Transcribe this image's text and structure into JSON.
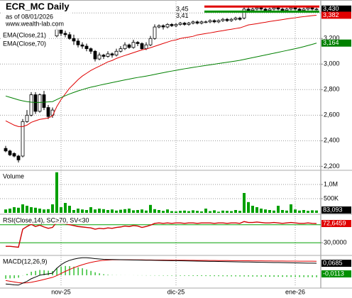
{
  "chart_data": [
    {
      "type": "candlestick",
      "title": "ECR_MC Daily",
      "subtitle": "as of 08/01/2026",
      "source": "www.wealth-lab.com",
      "categories": [
        null,
        null,
        null,
        null,
        null,
        null,
        null,
        null,
        null,
        null,
        null,
        null,
        null,
        "nov-25",
        null,
        null,
        null,
        null,
        null,
        null,
        null,
        null,
        null,
        null,
        null,
        null,
        null,
        null,
        null,
        null,
        null,
        null,
        null,
        null,
        null,
        null,
        null,
        null,
        null,
        null,
        "dic-25",
        null,
        null,
        null,
        null,
        null,
        null,
        null,
        null,
        null,
        null,
        null,
        null,
        null,
        null,
        null,
        null,
        null,
        null,
        null,
        null,
        null,
        null,
        null,
        null,
        null,
        null,
        null,
        "ene-26",
        null,
        null,
        null,
        null,
        null
      ],
      "open": [
        2.34,
        2.32,
        2.3,
        2.28,
        2.28,
        2.55,
        2.6,
        2.76,
        2.63,
        2.76,
        2.66,
        2.6,
        3.22,
        3.27,
        3.24,
        3.23,
        3.2,
        3.18,
        3.15,
        3.14,
        3.12,
        3.1,
        3.04,
        3.07,
        3.06,
        3.08,
        3.07,
        3.1,
        3.12,
        3.15,
        3.13,
        3.17,
        3.16,
        3.12,
        3.15,
        3.2,
        3.29,
        3.3,
        3.29,
        3.31,
        3.3,
        3.31,
        3.32,
        3.31,
        3.32,
        3.33,
        3.32,
        3.33,
        3.33,
        3.34,
        3.33,
        3.34,
        3.35,
        3.34,
        3.35,
        3.36,
        3.36,
        3.43,
        3.42,
        3.43,
        3.44,
        3.43,
        3.42,
        3.43,
        3.44,
        3.43,
        3.42,
        3.43,
        3.44,
        3.43,
        3.42,
        3.43,
        3.44,
        3.43
      ],
      "high": [
        2.36,
        2.33,
        2.31,
        2.29,
        2.57,
        2.64,
        2.78,
        2.78,
        2.77,
        2.79,
        2.68,
        2.66,
        3.32,
        3.29,
        3.26,
        3.25,
        3.23,
        3.2,
        3.17,
        3.16,
        3.13,
        3.11,
        3.09,
        3.08,
        3.1,
        3.09,
        3.12,
        3.14,
        3.17,
        3.16,
        3.19,
        3.18,
        3.17,
        3.17,
        3.22,
        3.31,
        3.31,
        3.31,
        3.32,
        3.32,
        3.32,
        3.33,
        3.33,
        3.33,
        3.34,
        3.34,
        3.34,
        3.34,
        3.35,
        3.35,
        3.35,
        3.36,
        3.36,
        3.36,
        3.37,
        3.37,
        3.45,
        3.45,
        3.44,
        3.45,
        3.45,
        3.44,
        3.44,
        3.45,
        3.45,
        3.44,
        3.44,
        3.45,
        3.45,
        3.44,
        3.44,
        3.45,
        3.45,
        3.44
      ],
      "low": [
        2.31,
        2.28,
        2.27,
        2.23,
        2.27,
        2.54,
        2.59,
        2.61,
        2.62,
        2.64,
        2.57,
        2.58,
        3.21,
        3.22,
        3.21,
        3.19,
        3.15,
        3.13,
        3.12,
        3.1,
        3.08,
        3.02,
        3.03,
        3.04,
        3.05,
        3.05,
        3.06,
        3.09,
        3.11,
        3.12,
        3.12,
        3.14,
        3.11,
        3.11,
        3.14,
        3.19,
        3.28,
        3.27,
        3.28,
        3.29,
        3.29,
        3.3,
        3.3,
        3.3,
        3.31,
        3.31,
        3.31,
        3.32,
        3.32,
        3.32,
        3.32,
        3.33,
        3.33,
        3.33,
        3.34,
        3.34,
        3.35,
        3.41,
        3.41,
        3.42,
        3.42,
        3.41,
        3.41,
        3.42,
        3.42,
        3.41,
        3.41,
        3.42,
        3.42,
        3.41,
        3.41,
        3.42,
        3.42,
        3.42
      ],
      "close": [
        2.32,
        2.29,
        2.28,
        2.25,
        2.55,
        2.6,
        2.76,
        2.63,
        2.76,
        2.66,
        2.59,
        2.64,
        3.27,
        3.24,
        3.23,
        3.2,
        3.18,
        3.15,
        3.14,
        3.12,
        3.1,
        3.04,
        3.07,
        3.06,
        3.08,
        3.07,
        3.1,
        3.12,
        3.15,
        3.13,
        3.17,
        3.16,
        3.12,
        3.15,
        3.2,
        3.29,
        3.3,
        3.29,
        3.31,
        3.3,
        3.31,
        3.32,
        3.31,
        3.32,
        3.33,
        3.32,
        3.33,
        3.33,
        3.34,
        3.33,
        3.34,
        3.35,
        3.34,
        3.35,
        3.36,
        3.35,
        3.43,
        3.42,
        3.43,
        3.44,
        3.43,
        3.42,
        3.43,
        3.44,
        3.43,
        3.42,
        3.43,
        3.44,
        3.43,
        3.42,
        3.43,
        3.44,
        3.43,
        3.43
      ],
      "close_label": "3,430",
      "close_label_color": "#000000",
      "up_color": "#ffffff",
      "down_color": "#000000",
      "series": [
        {
          "name": "EMA(Close,21)",
          "color": "#e00000",
          "last_label": "3,382",
          "values": [
            2.556,
            2.539,
            2.522,
            2.511,
            2.511,
            2.522,
            2.544,
            2.556,
            2.567,
            2.572,
            2.578,
            2.594,
            2.667,
            2.722,
            2.767,
            2.811,
            2.844,
            2.878,
            2.906,
            2.928,
            2.95,
            2.967,
            2.983,
            3.0,
            3.017,
            3.028,
            3.044,
            3.056,
            3.067,
            3.078,
            3.089,
            3.1,
            3.111,
            3.117,
            3.128,
            3.139,
            3.15,
            3.161,
            3.172,
            3.183,
            3.189,
            3.2,
            3.206,
            3.211,
            3.217,
            3.228,
            3.233,
            3.239,
            3.244,
            3.25,
            3.256,
            3.261,
            3.267,
            3.272,
            3.278,
            3.283,
            3.294,
            3.306,
            3.311,
            3.316,
            3.322,
            3.327,
            3.333,
            3.338,
            3.343,
            3.348,
            3.353,
            3.358,
            3.362,
            3.367,
            3.371,
            3.375,
            3.379,
            3.382
          ]
        },
        {
          "name": "EMA(Close,70)",
          "color": "#008000",
          "last_label": "3,164",
          "values": [
            2.75,
            2.74,
            2.73,
            2.72,
            2.712,
            2.706,
            2.702,
            2.7,
            2.7,
            2.702,
            2.704,
            2.706,
            2.722,
            2.738,
            2.752,
            2.766,
            2.778,
            2.79,
            2.8,
            2.81,
            2.819,
            2.826,
            2.834,
            2.841,
            2.848,
            2.855,
            2.862,
            2.869,
            2.876,
            2.882,
            2.889,
            2.895,
            2.9,
            2.906,
            2.912,
            2.919,
            2.926,
            2.932,
            2.939,
            2.945,
            2.951,
            2.957,
            2.963,
            2.968,
            2.974,
            2.979,
            2.984,
            2.989,
            2.994,
            2.999,
            3.004,
            3.009,
            3.014,
            3.019,
            3.024,
            3.029,
            3.036,
            3.043,
            3.05,
            3.057,
            3.064,
            3.071,
            3.078,
            3.085,
            3.092,
            3.099,
            3.106,
            3.113,
            3.12,
            3.128,
            3.136,
            3.145,
            3.154,
            3.164
          ]
        }
      ],
      "levels": [
        {
          "value": 3.45,
          "label": "3,45",
          "color": "#e00000"
        },
        {
          "value": 3.41,
          "label": "3,41",
          "color": "#009000"
        }
      ],
      "ylim": [
        2.18,
        3.49
      ],
      "yticks": [
        {
          "value": 2.2,
          "label": "2,200"
        },
        {
          "value": 2.4,
          "label": "2,400"
        },
        {
          "value": 2.6,
          "label": "2,600"
        },
        {
          "value": 2.8,
          "label": "2,800"
        },
        {
          "value": 3.0,
          "label": "3,000"
        },
        {
          "value": 3.2,
          "label": "3,200"
        },
        {
          "value": 3.4,
          "label": "3,400"
        }
      ],
      "grid": true
    },
    {
      "type": "bar",
      "title": "Volume",
      "color": "#00a000",
      "last_label": "83,093",
      "last_label_color": "#000000",
      "values": [
        120000,
        150000,
        200000,
        180000,
        300000,
        250000,
        200000,
        180000,
        150000,
        120000,
        130000,
        300000,
        1430000,
        200000,
        350000,
        250000,
        100000,
        150000,
        120000,
        100000,
        200000,
        120000,
        150000,
        130000,
        100000,
        120000,
        80000,
        110000,
        130000,
        150000,
        90000,
        100000,
        120000,
        80000,
        280000,
        130000,
        100000,
        70000,
        120000,
        60000,
        50000,
        70000,
        80000,
        60000,
        90000,
        70000,
        50000,
        150000,
        60000,
        90000,
        40000,
        80000,
        70000,
        60000,
        100000,
        70000,
        700000,
        380000,
        250000,
        200000,
        150000,
        120000,
        100000,
        80000,
        250000,
        100000,
        80000,
        300000,
        120000,
        80000,
        100000,
        70000,
        90000,
        83093
      ],
      "ylim": [
        0,
        1450000
      ],
      "yticks": [
        {
          "value": 500000,
          "label": "500K"
        },
        {
          "value": 1000000,
          "label": "1,0M"
        }
      ],
      "grid": true
    },
    {
      "type": "line",
      "title": "RSI(Close,14), SC>70, SV<30",
      "color": "#d00000",
      "last_label": "72,6459",
      "last_label_color": "#e00000",
      "values": [
        22,
        22,
        21,
        20,
        60,
        66,
        71,
        66,
        69,
        65,
        62,
        64,
        76,
        73,
        72,
        70,
        68,
        66,
        65,
        64,
        63,
        60,
        62,
        61,
        63,
        62,
        64,
        65,
        67,
        66,
        68,
        67,
        64,
        66,
        69,
        73,
        74,
        73,
        74,
        73,
        74,
        74,
        73,
        74,
        74,
        73,
        74,
        74,
        74,
        73,
        74,
        74,
        73,
        74,
        74,
        73,
        77,
        75,
        75,
        76,
        75,
        74,
        74,
        75,
        74,
        73,
        74,
        75,
        74,
        73,
        73,
        74,
        73,
        72.6459
      ],
      "bands": [
        30,
        70
      ],
      "band_color": "#00a000",
      "ylim": [
        5,
        90
      ],
      "yticks": [
        {
          "value": 30,
          "label": "30,0000"
        }
      ],
      "grid": false
    },
    {
      "type": "macd",
      "title": "MACD(12,26,9)",
      "macd": {
        "color": "#000000",
        "last_label": "0,0685",
        "last_label_color": "#000000",
        "values": [
          -0.05,
          -0.052,
          -0.055,
          -0.056,
          -0.045,
          -0.035,
          -0.02,
          -0.01,
          0,
          0.005,
          0.008,
          0.012,
          0.04,
          0.06,
          0.075,
          0.085,
          0.092,
          0.097,
          0.1,
          0.1,
          0.098,
          0.095,
          0.093,
          0.091,
          0.09,
          0.0896,
          0.0891,
          0.0887,
          0.0882,
          0.0878,
          0.0874,
          0.0869,
          0.0865,
          0.086,
          0.0856,
          0.0852,
          0.0847,
          0.0843,
          0.0838,
          0.0834,
          0.083,
          0.0825,
          0.0821,
          0.0816,
          0.0812,
          0.0808,
          0.0803,
          0.0799,
          0.0794,
          0.079,
          0.0786,
          0.0781,
          0.0777,
          0.0772,
          0.0768,
          0.0764,
          0.0759,
          0.0755,
          0.075,
          0.0746,
          0.0742,
          0.0737,
          0.0733,
          0.0728,
          0.0724,
          0.072,
          0.0715,
          0.0711,
          0.0706,
          0.0702,
          0.0698,
          0.0693,
          0.0689,
          0.0685
        ]
      },
      "signal": {
        "color": "#e00000",
        "values": [
          -0.03,
          -0.034,
          -0.038,
          -0.042,
          -0.044,
          -0.043,
          -0.04,
          -0.035,
          -0.03,
          -0.024,
          -0.018,
          -0.012,
          -0.002,
          0.01,
          0.022,
          0.033,
          0.043,
          0.052,
          0.06,
          0.067,
          0.073,
          0.078,
          0.082,
          0.085,
          0.087,
          0.0885,
          0.0884,
          0.0883,
          0.0882,
          0.0881,
          0.088,
          0.0878,
          0.0876,
          0.0874,
          0.0872,
          0.087,
          0.0868,
          0.0866,
          0.0864,
          0.0862,
          0.086,
          0.0858,
          0.0856,
          0.0854,
          0.0852,
          0.085,
          0.0848,
          0.0846,
          0.0844,
          0.0842,
          0.084,
          0.0838,
          0.0836,
          0.0834,
          0.0832,
          0.083,
          0.0828,
          0.0826,
          0.0824,
          0.0822,
          0.082,
          0.0818,
          0.0816,
          0.0814,
          0.0812,
          0.081,
          0.0809,
          0.0808,
          0.0806,
          0.0804,
          0.0803,
          0.0801,
          0.08,
          0.0798
        ]
      },
      "histogram": {
        "color": "#00b000",
        "last_label": "-0,0113",
        "last_label_color": "#009000",
        "values": [
          -0.02,
          -0.018,
          -0.017,
          -0.014,
          -0.001,
          0.008,
          0.02,
          0.025,
          0.03,
          0.029,
          0.026,
          0.024,
          0.042,
          0.05,
          0.053,
          0.052,
          0.049,
          0.045,
          0.04,
          0.033,
          0.025,
          0.017,
          0.011,
          0.006,
          0.003,
          0.0011,
          0.0007,
          0.0004,
          0.0002,
          -0.0001,
          -0.0003,
          -0.0006,
          -0.0008,
          -0.0011,
          -0.0013,
          -0.0016,
          -0.0018,
          -0.0021,
          -0.0023,
          -0.0026,
          -0.0028,
          -0.0031,
          -0.0033,
          -0.0036,
          -0.0038,
          -0.0041,
          -0.0043,
          -0.0046,
          -0.0048,
          -0.0051,
          -0.0053,
          -0.0056,
          -0.0058,
          -0.0061,
          -0.0063,
          -0.0066,
          -0.0068,
          -0.0071,
          -0.0073,
          -0.0076,
          -0.0078,
          -0.0081,
          -0.0083,
          -0.0086,
          -0.0088,
          -0.0091,
          -0.0093,
          -0.0096,
          -0.0098,
          -0.0101,
          -0.0103,
          -0.0106,
          -0.0108,
          -0.0113
        ]
      },
      "ylim": [
        -0.065,
        0.105
      ]
    }
  ]
}
